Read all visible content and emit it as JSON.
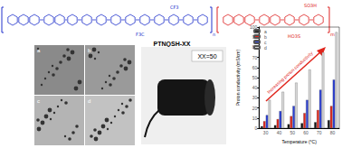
{
  "label": "PTNQSH-XX",
  "photo_label": "XX=50",
  "structure": {
    "blue_subscript": "n",
    "red_subscript": "m",
    "groups": [
      "F3C",
      "CF3",
      "HO3S",
      "SO3H"
    ]
  },
  "micrographs": [
    "a",
    "b",
    "c",
    "d"
  ],
  "chart_data": {
    "type": "bar",
    "categories": [
      "30",
      "40",
      "50",
      "60",
      "70",
      "80"
    ],
    "x_label": "Temperature (°C)",
    "y_label": "Proton conductivity (mS/cm)",
    "annotation": "Increasing proton conductivity",
    "ylim": [
      0,
      100
    ],
    "yticks": [
      0,
      10,
      20,
      30,
      40,
      50,
      60,
      70,
      80,
      90,
      100
    ],
    "grid": false,
    "legend": "upper left",
    "series": [
      {
        "name": "a",
        "color": "#111111",
        "values": [
          2,
          3,
          4,
          5,
          6,
          8
        ]
      },
      {
        "name": "b",
        "color": "#e0241b",
        "values": [
          7,
          9,
          12,
          15,
          18,
          22
        ]
      },
      {
        "name": "c",
        "color": "#2b3fd6",
        "values": [
          13,
          17,
          22,
          28,
          38,
          48
        ]
      },
      {
        "name": "d",
        "color": "#d8d8d8",
        "values": [
          28,
          36,
          45,
          58,
          75,
          95
        ]
      }
    ]
  }
}
